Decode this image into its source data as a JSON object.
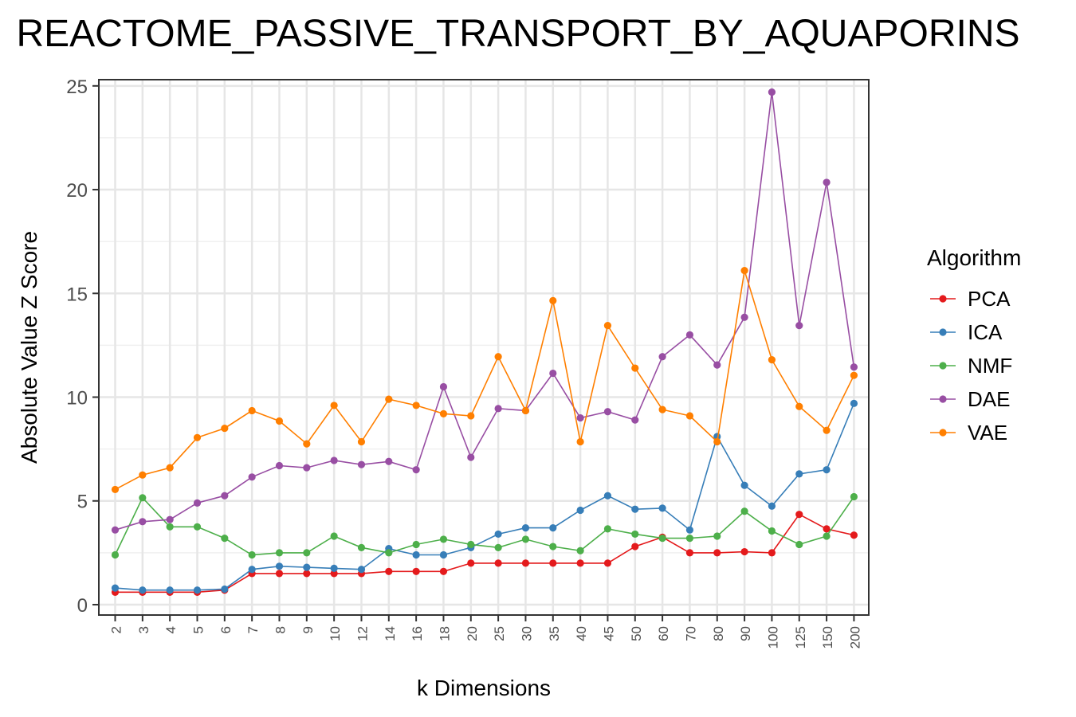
{
  "chart_data": {
    "type": "line",
    "title": "REACTOME_PASSIVE_TRANSPORT_BY_AQUAPORINS",
    "xlabel": "k Dimensions",
    "ylabel": "Absolute Value Z Score",
    "categories": [
      "2",
      "3",
      "4",
      "5",
      "6",
      "7",
      "8",
      "9",
      "10",
      "12",
      "14",
      "16",
      "18",
      "20",
      "25",
      "30",
      "35",
      "40",
      "45",
      "50",
      "60",
      "70",
      "80",
      "90",
      "100",
      "125",
      "150",
      "200"
    ],
    "ylim": [
      -0.5,
      25.3
    ],
    "yticks": [
      0,
      5,
      10,
      15,
      20,
      25
    ],
    "grid": true,
    "legend": {
      "title": "Algorithm",
      "position": "right"
    },
    "series": [
      {
        "name": "PCA",
        "color": "#e41a1c",
        "values": [
          0.6,
          0.6,
          0.6,
          0.6,
          0.7,
          1.5,
          1.5,
          1.5,
          1.5,
          1.5,
          1.6,
          1.6,
          1.6,
          2.0,
          2.0,
          2.0,
          2.0,
          2.0,
          2.0,
          2.8,
          3.25,
          2.5,
          2.5,
          2.55,
          2.5,
          4.35,
          3.65,
          3.35
        ]
      },
      {
        "name": "ICA",
        "color": "#377eb8",
        "values": [
          0.8,
          0.7,
          0.7,
          0.7,
          0.75,
          1.7,
          1.85,
          1.8,
          1.75,
          1.7,
          2.7,
          2.4,
          2.4,
          2.75,
          3.4,
          3.7,
          3.7,
          4.55,
          5.25,
          4.6,
          4.65,
          3.6,
          8.1,
          5.75,
          4.75,
          6.3,
          6.5,
          9.7
        ]
      },
      {
        "name": "NMF",
        "color": "#4daf4a",
        "values": [
          2.4,
          5.15,
          3.75,
          3.75,
          3.2,
          2.4,
          2.5,
          2.5,
          3.3,
          2.75,
          2.5,
          2.9,
          3.15,
          2.9,
          2.75,
          3.15,
          2.8,
          2.6,
          3.65,
          3.4,
          3.2,
          3.2,
          3.3,
          4.5,
          3.55,
          2.9,
          3.3,
          5.2
        ]
      },
      {
        "name": "DAE",
        "color": "#984ea3",
        "values": [
          3.6,
          4.0,
          4.1,
          4.9,
          5.25,
          6.15,
          6.7,
          6.6,
          6.95,
          6.75,
          6.9,
          6.5,
          10.5,
          7.1,
          9.45,
          9.35,
          11.15,
          9.0,
          9.3,
          8.9,
          11.95,
          13.0,
          11.55,
          13.85,
          24.7,
          13.45,
          20.35,
          11.45
        ]
      },
      {
        "name": "VAE",
        "color": "#ff7f00",
        "values": [
          5.55,
          6.25,
          6.6,
          8.05,
          8.5,
          9.35,
          8.85,
          7.75,
          9.6,
          7.85,
          9.9,
          9.6,
          9.2,
          9.1,
          11.95,
          9.35,
          14.65,
          7.85,
          13.45,
          11.4,
          9.4,
          9.1,
          7.85,
          16.1,
          11.8,
          9.55,
          8.4,
          11.05
        ]
      }
    ]
  }
}
